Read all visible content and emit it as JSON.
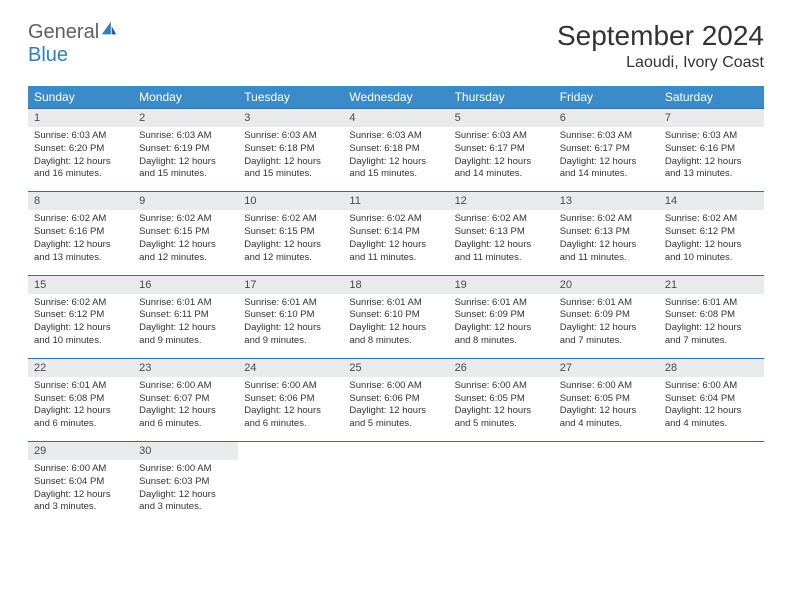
{
  "logo": {
    "word1": "General",
    "word2": "Blue"
  },
  "title": "September 2024",
  "location": "Laoudi, Ivory Coast",
  "colors": {
    "header_bg": "#3b8bc8",
    "header_text": "#ffffff",
    "daynum_bg": "#e9eaec",
    "border": "#2f6fa8",
    "logo_gray": "#5f5f5f",
    "logo_blue": "#2f7fc0",
    "text": "#333333"
  },
  "day_headers": [
    "Sunday",
    "Monday",
    "Tuesday",
    "Wednesday",
    "Thursday",
    "Friday",
    "Saturday"
  ],
  "weeks": [
    [
      {
        "n": "1",
        "sr": "6:03 AM",
        "ss": "6:20 PM",
        "dl": "12 hours and 16 minutes."
      },
      {
        "n": "2",
        "sr": "6:03 AM",
        "ss": "6:19 PM",
        "dl": "12 hours and 15 minutes."
      },
      {
        "n": "3",
        "sr": "6:03 AM",
        "ss": "6:18 PM",
        "dl": "12 hours and 15 minutes."
      },
      {
        "n": "4",
        "sr": "6:03 AM",
        "ss": "6:18 PM",
        "dl": "12 hours and 15 minutes."
      },
      {
        "n": "5",
        "sr": "6:03 AM",
        "ss": "6:17 PM",
        "dl": "12 hours and 14 minutes."
      },
      {
        "n": "6",
        "sr": "6:03 AM",
        "ss": "6:17 PM",
        "dl": "12 hours and 14 minutes."
      },
      {
        "n": "7",
        "sr": "6:03 AM",
        "ss": "6:16 PM",
        "dl": "12 hours and 13 minutes."
      }
    ],
    [
      {
        "n": "8",
        "sr": "6:02 AM",
        "ss": "6:16 PM",
        "dl": "12 hours and 13 minutes."
      },
      {
        "n": "9",
        "sr": "6:02 AM",
        "ss": "6:15 PM",
        "dl": "12 hours and 12 minutes."
      },
      {
        "n": "10",
        "sr": "6:02 AM",
        "ss": "6:15 PM",
        "dl": "12 hours and 12 minutes."
      },
      {
        "n": "11",
        "sr": "6:02 AM",
        "ss": "6:14 PM",
        "dl": "12 hours and 11 minutes."
      },
      {
        "n": "12",
        "sr": "6:02 AM",
        "ss": "6:13 PM",
        "dl": "12 hours and 11 minutes."
      },
      {
        "n": "13",
        "sr": "6:02 AM",
        "ss": "6:13 PM",
        "dl": "12 hours and 11 minutes."
      },
      {
        "n": "14",
        "sr": "6:02 AM",
        "ss": "6:12 PM",
        "dl": "12 hours and 10 minutes."
      }
    ],
    [
      {
        "n": "15",
        "sr": "6:02 AM",
        "ss": "6:12 PM",
        "dl": "12 hours and 10 minutes."
      },
      {
        "n": "16",
        "sr": "6:01 AM",
        "ss": "6:11 PM",
        "dl": "12 hours and 9 minutes."
      },
      {
        "n": "17",
        "sr": "6:01 AM",
        "ss": "6:10 PM",
        "dl": "12 hours and 9 minutes."
      },
      {
        "n": "18",
        "sr": "6:01 AM",
        "ss": "6:10 PM",
        "dl": "12 hours and 8 minutes."
      },
      {
        "n": "19",
        "sr": "6:01 AM",
        "ss": "6:09 PM",
        "dl": "12 hours and 8 minutes."
      },
      {
        "n": "20",
        "sr": "6:01 AM",
        "ss": "6:09 PM",
        "dl": "12 hours and 7 minutes."
      },
      {
        "n": "21",
        "sr": "6:01 AM",
        "ss": "6:08 PM",
        "dl": "12 hours and 7 minutes."
      }
    ],
    [
      {
        "n": "22",
        "sr": "6:01 AM",
        "ss": "6:08 PM",
        "dl": "12 hours and 6 minutes."
      },
      {
        "n": "23",
        "sr": "6:00 AM",
        "ss": "6:07 PM",
        "dl": "12 hours and 6 minutes."
      },
      {
        "n": "24",
        "sr": "6:00 AM",
        "ss": "6:06 PM",
        "dl": "12 hours and 6 minutes."
      },
      {
        "n": "25",
        "sr": "6:00 AM",
        "ss": "6:06 PM",
        "dl": "12 hours and 5 minutes."
      },
      {
        "n": "26",
        "sr": "6:00 AM",
        "ss": "6:05 PM",
        "dl": "12 hours and 5 minutes."
      },
      {
        "n": "27",
        "sr": "6:00 AM",
        "ss": "6:05 PM",
        "dl": "12 hours and 4 minutes."
      },
      {
        "n": "28",
        "sr": "6:00 AM",
        "ss": "6:04 PM",
        "dl": "12 hours and 4 minutes."
      }
    ],
    [
      {
        "n": "29",
        "sr": "6:00 AM",
        "ss": "6:04 PM",
        "dl": "12 hours and 3 minutes."
      },
      {
        "n": "30",
        "sr": "6:00 AM",
        "ss": "6:03 PM",
        "dl": "12 hours and 3 minutes."
      },
      null,
      null,
      null,
      null,
      null
    ]
  ],
  "labels": {
    "sunrise": "Sunrise:",
    "sunset": "Sunset:",
    "daylight": "Daylight:"
  }
}
